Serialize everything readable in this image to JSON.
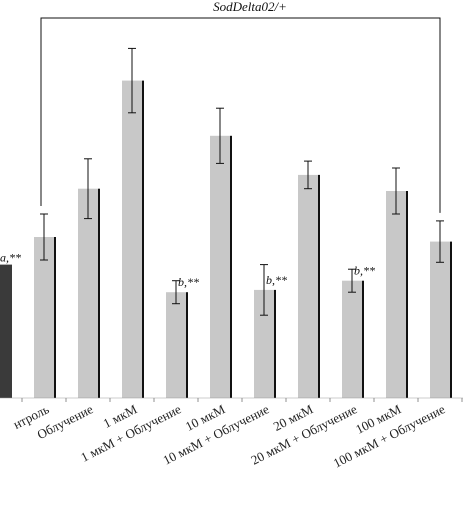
{
  "chart_data": {
    "type": "bar",
    "bracket_label": "SodDelta02/+",
    "categories": [
      "нтроль",
      "Облучение",
      "1 мкМ",
      "1 мкМ + Облучение",
      "10 мкМ",
      "10 мкМ + Облучение",
      "20 мкМ",
      "20 мкМ + Облучение",
      "100 мкМ",
      "100 мкМ + Облучение"
    ],
    "left_partial_bar": {
      "value": 0.58,
      "annotation": "a,**"
    },
    "values": [
      0.7,
      0.91,
      1.38,
      0.46,
      1.14,
      0.47,
      0.97,
      0.51,
      0.9,
      0.68
    ],
    "errors": [
      0.1,
      0.13,
      0.14,
      0.05,
      0.12,
      0.11,
      0.06,
      0.05,
      0.1,
      0.09
    ],
    "annotations": [
      "",
      "",
      "",
      "b,**",
      "",
      "b,**",
      "",
      "b,**",
      "",
      ""
    ],
    "ylim": [
      0,
      1.6
    ],
    "colors": {
      "bar": "#c8c8c8",
      "bar_shadow": "#111111",
      "left_bar": "#3a3a3a"
    }
  }
}
